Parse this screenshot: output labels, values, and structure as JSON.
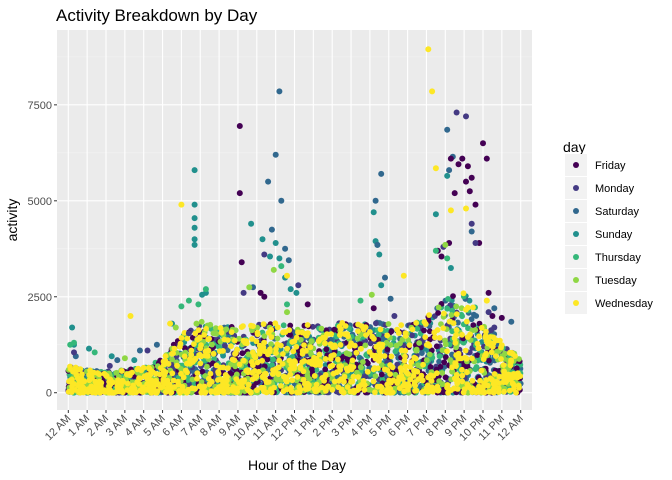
{
  "chart_data": {
    "type": "scatter",
    "title": "Activity Breakdown by Day",
    "xlabel": "Hour of the Day",
    "ylabel": "activity",
    "x_ticks": [
      "12 AM",
      "1 AM",
      "2 AM",
      "3 AM",
      "4 AM",
      "5 AM",
      "6 AM",
      "7 AM",
      "8 AM",
      "9 AM",
      "10 AM",
      "11 AM",
      "12 PM",
      "1 PM",
      "2 PM",
      "3 PM",
      "4 PM",
      "5 PM",
      "6 PM",
      "7 PM",
      "8 PM",
      "9 PM",
      "10 PM",
      "11 PM",
      "12 AM"
    ],
    "xlim": [
      -0.6,
      24.6
    ],
    "ylim": [
      -450,
      9450
    ],
    "y_ticks": [
      0,
      2500,
      5000,
      7500
    ],
    "y_tick_labels": [
      "0",
      "2500",
      "5000",
      "7500"
    ],
    "grid": true,
    "background": "#ebebeb",
    "legend": {
      "title": "day",
      "position": "right",
      "entries": [
        {
          "name": "Friday",
          "color": "#440154"
        },
        {
          "name": "Monday",
          "color": "#443a83"
        },
        {
          "name": "Saturday",
          "color": "#31688e"
        },
        {
          "name": "Sunday",
          "color": "#21908d"
        },
        {
          "name": "Thursday",
          "color": "#35b779"
        },
        {
          "name": "Tuesday",
          "color": "#8fd744"
        },
        {
          "name": "Wednesday",
          "color": "#fde725"
        }
      ]
    },
    "series": [
      {
        "name": "Sunday",
        "color": "#21908d",
        "x": [
          0.2,
          0.3,
          1.1,
          2.3,
          3.5,
          5.5,
          6.7,
          6.7,
          6.7,
          6.7,
          6.7,
          6.7,
          7.1,
          7.3,
          9.7,
          10.3,
          10.7,
          11.0,
          11.2,
          11.5,
          11.8,
          12.1,
          16.2,
          16.3,
          16.4,
          16.5,
          16.6,
          19.5,
          20.1,
          20.3
        ],
        "y": [
          1700,
          1250,
          1150,
          950,
          850,
          1800,
          5800,
          4900,
          4550,
          4300,
          4000,
          3850,
          2550,
          2600,
          4400,
          4000,
          3550,
          3900,
          3500,
          3000,
          2700,
          2600,
          4700,
          3950,
          3850,
          3600,
          2800,
          4650,
          5650,
          3250
        ]
      },
      {
        "name": "Saturday",
        "color": "#31688e",
        "x": [
          0.4,
          2.6,
          3.8,
          4.7,
          9.8,
          10.6,
          10.8,
          11.0,
          11.2,
          11.3,
          11.5,
          11.7,
          16.3,
          16.4,
          16.6,
          16.8,
          17.1,
          20.1,
          20.2,
          20.4,
          21.4,
          22.6,
          23.5
        ],
        "y": [
          950,
          850,
          1100,
          1250,
          2750,
          5500,
          4250,
          6200,
          7850,
          5000,
          3750,
          3450,
          5000,
          3850,
          5700,
          3000,
          2450,
          6850,
          5800,
          6150,
          4200,
          2200,
          1850
        ]
      },
      {
        "name": "Friday",
        "color": "#440154",
        "x": [
          9.1,
          9.1,
          9.2,
          10.2,
          10.4,
          12.7,
          16.2,
          19.6,
          19.8,
          20.2,
          20.3,
          20.5,
          20.7,
          20.9,
          21.1,
          21.2,
          21.3,
          21.4,
          21.6,
          21.8,
          22.0,
          22.2,
          22.3,
          22.5,
          23.0
        ],
        "y": [
          6950,
          5200,
          3400,
          2600,
          2500,
          2300,
          2200,
          3700,
          3550,
          3900,
          6100,
          5200,
          5950,
          6100,
          5500,
          5900,
          5250,
          5600,
          4900,
          3900,
          6500,
          6100,
          2600,
          2000,
          1950
        ]
      },
      {
        "name": "Monday",
        "color": "#443a83",
        "x": [
          0.3,
          2.2,
          4.2,
          6.4,
          9.3,
          10.4,
          12.2,
          17.3,
          19.9,
          20.6,
          21.1,
          21.4,
          21.6,
          22.3,
          22.6
        ],
        "y": [
          1050,
          700,
          1100,
          1550,
          2600,
          3600,
          2800,
          2000,
          3800,
          7300,
          7200,
          4400,
          3900,
          2100,
          1700
        ]
      },
      {
        "name": "Thursday",
        "color": "#35b779",
        "x": [
          0.1,
          0.3,
          1.4,
          6.0,
          6.4,
          6.9,
          7.3,
          11.3,
          11.6,
          15.5,
          19.5,
          20.1
        ],
        "y": [
          1250,
          1300,
          1050,
          2250,
          2400,
          2300,
          2700,
          3300,
          2300,
          2400,
          3700,
          3500
        ]
      },
      {
        "name": "Tuesday",
        "color": "#8fd744",
        "x": [
          3.0,
          5.7,
          6.8,
          9.6,
          10.9,
          11.6,
          16.1,
          20.0
        ],
        "y": [
          900,
          1700,
          1800,
          2750,
          3200,
          2100,
          2550,
          3850
        ]
      },
      {
        "name": "Wednesday",
        "color": "#fde725",
        "x": [
          3.3,
          5.4,
          6.0,
          11.6,
          17.8,
          19.1,
          19.3,
          19.5,
          20.3,
          21.1,
          22.2
        ],
        "y": [
          2000,
          1800,
          4900,
          3050,
          3050,
          8950,
          7850,
          5850,
          4750,
          4800,
          2400
        ]
      }
    ],
    "dense_band": {
      "description_free": true,
      "envelope_hours": [
        0,
        1,
        2,
        3,
        4,
        5,
        6,
        7,
        8,
        9,
        10,
        11,
        12,
        13,
        14,
        15,
        16,
        17,
        18,
        19,
        20,
        21,
        22,
        23,
        24
      ],
      "envelope_max": [
        700,
        600,
        550,
        600,
        650,
        900,
        1500,
        1900,
        1700,
        1750,
        1800,
        1850,
        1800,
        1750,
        1800,
        1850,
        1850,
        1800,
        1750,
        1950,
        2500,
        2700,
        1900,
        1300,
        900
      ]
    }
  }
}
